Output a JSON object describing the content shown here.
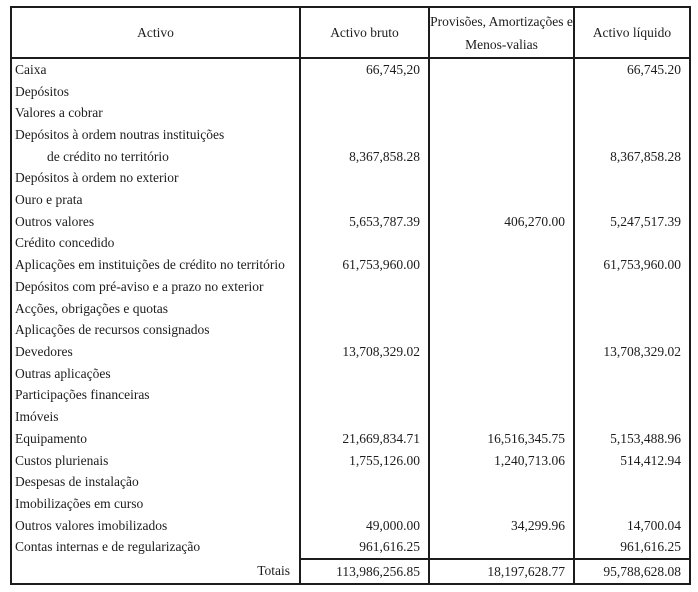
{
  "document": {
    "header": {
      "activo": "Activo",
      "activo_bruto": "Activo bruto",
      "provisoes_line1": "Provisões, Amortizações e",
      "provisoes_line2": "Menos-valias",
      "activo_liquido": "Activo líquido"
    },
    "rows": [
      {
        "label": "Caixa",
        "indent": false,
        "bruto": "66,745,20",
        "provisoes": "",
        "liquido": "66,745.20"
      },
      {
        "label": "Depósitos",
        "indent": false,
        "bruto": "",
        "provisoes": "",
        "liquido": ""
      },
      {
        "label": "Valores a cobrar",
        "indent": false,
        "bruto": "",
        "provisoes": "",
        "liquido": ""
      },
      {
        "label": "Depósitos à ordem noutras instituições",
        "indent": false,
        "bruto": "",
        "provisoes": "",
        "liquido": ""
      },
      {
        "label": "de crédito no território",
        "indent": true,
        "bruto": "8,367,858.28",
        "provisoes": "",
        "liquido": "8,367,858.28"
      },
      {
        "label": "Depósitos à ordem no exterior",
        "indent": false,
        "bruto": "",
        "provisoes": "",
        "liquido": ""
      },
      {
        "label": "Ouro e prata",
        "indent": false,
        "bruto": "",
        "provisoes": "",
        "liquido": ""
      },
      {
        "label": "Outros valores",
        "indent": false,
        "bruto": "5,653,787.39",
        "provisoes": "406,270.00",
        "liquido": "5,247,517.39"
      },
      {
        "label": "Crédito concedido",
        "indent": false,
        "bruto": "",
        "provisoes": "",
        "liquido": ""
      },
      {
        "label": "Aplicações em instituições de crédito no território",
        "indent": false,
        "bruto": "61,753,960.00",
        "provisoes": "",
        "liquido": "61,753,960.00"
      },
      {
        "label": "Depósitos com pré-aviso e a prazo no exterior",
        "indent": false,
        "bruto": "",
        "provisoes": "",
        "liquido": ""
      },
      {
        "label": "Acções, obrigações e quotas",
        "indent": false,
        "bruto": "",
        "provisoes": "",
        "liquido": ""
      },
      {
        "label": "Aplicações de recursos consignados",
        "indent": false,
        "bruto": "",
        "provisoes": "",
        "liquido": ""
      },
      {
        "label": "Devedores",
        "indent": false,
        "bruto": "13,708,329.02",
        "provisoes": "",
        "liquido": "13,708,329.02"
      },
      {
        "label": "Outras aplicações",
        "indent": false,
        "bruto": "",
        "provisoes": "",
        "liquido": ""
      },
      {
        "label": "Participações financeiras",
        "indent": false,
        "bruto": "",
        "provisoes": "",
        "liquido": ""
      },
      {
        "label": "Imóveis",
        "indent": false,
        "bruto": "",
        "provisoes": "",
        "liquido": ""
      },
      {
        "label": "Equipamento",
        "indent": false,
        "bruto": "21,669,834.71",
        "provisoes": "16,516,345.75",
        "liquido": "5,153,488.96"
      },
      {
        "label": "Custos plurienais",
        "indent": false,
        "bruto": "1,755,126.00",
        "provisoes": "1,240,713.06",
        "liquido": "514,412.94"
      },
      {
        "label": "Despesas de instalação",
        "indent": false,
        "bruto": "",
        "provisoes": "",
        "liquido": ""
      },
      {
        "label": "Imobilizações em curso",
        "indent": false,
        "bruto": "",
        "provisoes": "",
        "liquido": ""
      },
      {
        "label": "Outros valores imobilizados",
        "indent": false,
        "bruto": "49,000.00",
        "provisoes": "34,299.96",
        "liquido": "14,700.04"
      },
      {
        "label": "Contas internas e de regularização",
        "indent": false,
        "bruto": "961,616.25",
        "provisoes": "",
        "liquido": "961,616.25"
      }
    ],
    "totals": {
      "label": "Totais",
      "bruto": "113,986,256.85",
      "provisoes": "18,197,628.77",
      "liquido": "95,788,628.08"
    },
    "colors": {
      "text": "#1c1c1c",
      "border": "#1c1c1c",
      "background": "#ffffff"
    }
  }
}
